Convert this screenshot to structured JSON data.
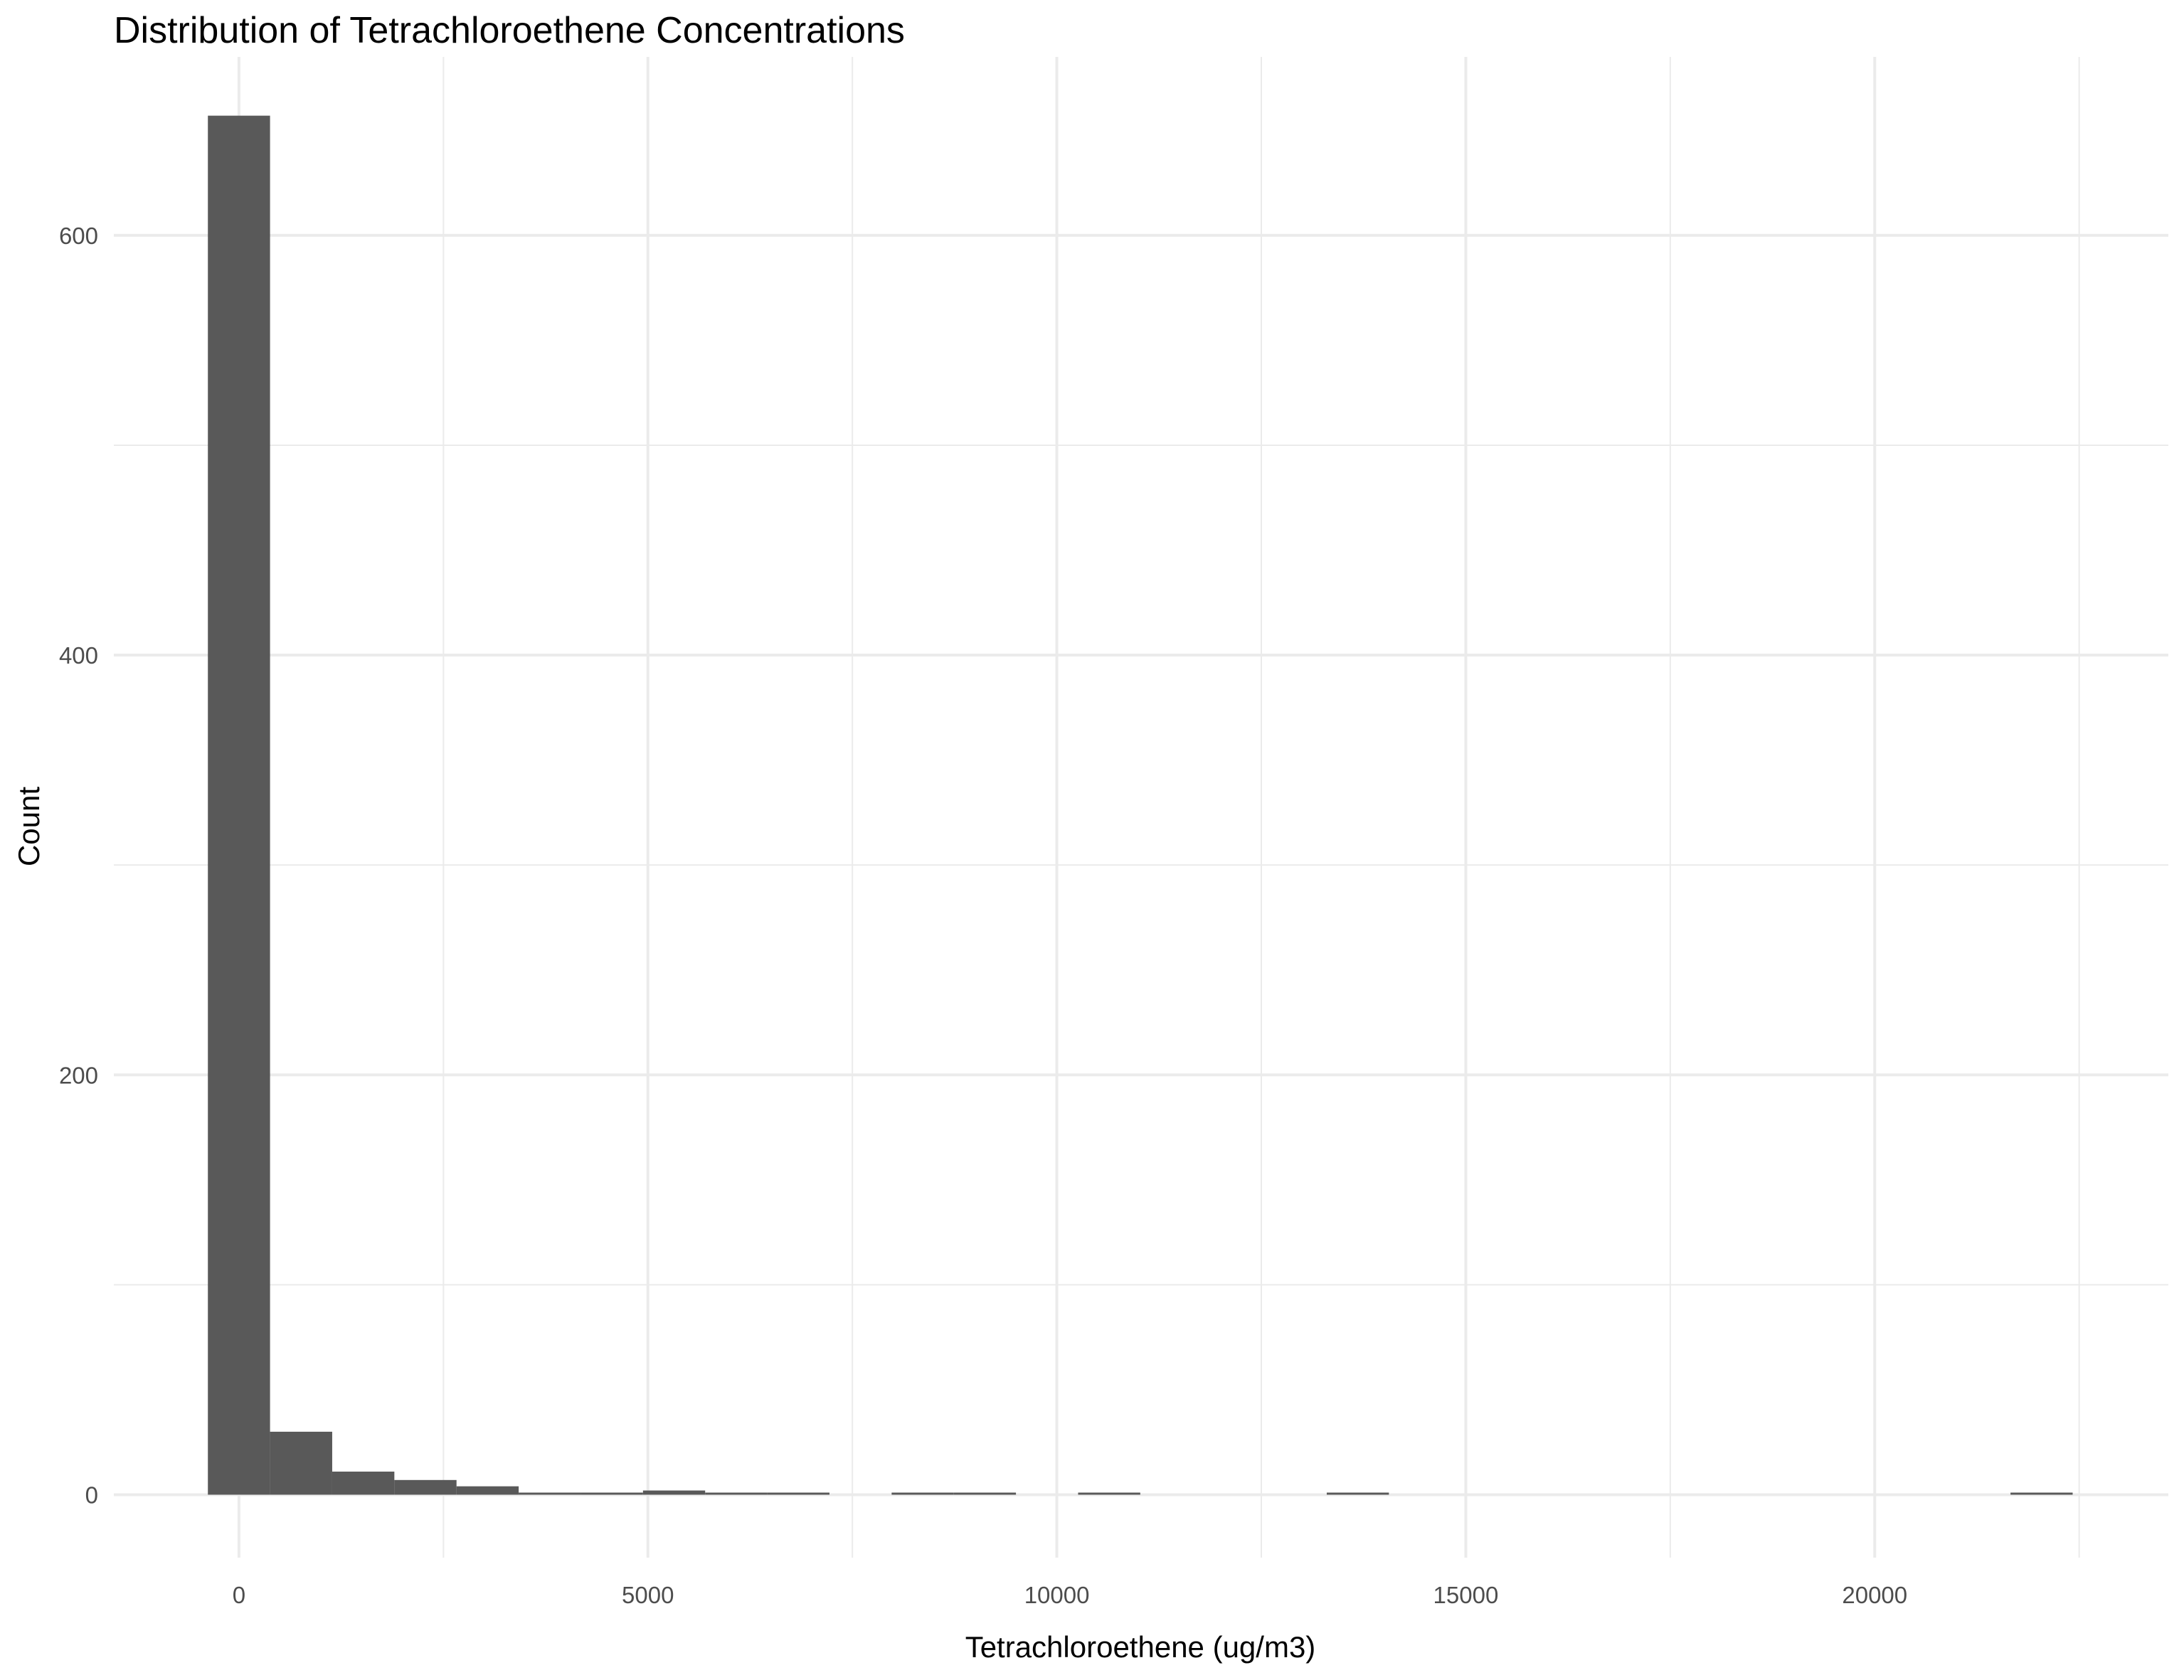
{
  "chart_data": {
    "type": "bar",
    "title": "Distribution of Tetrachloroethene Concentrations",
    "xlabel": "Tetrachloroethene (ug/m3)",
    "ylabel": "Count",
    "xlim": [
      -1530,
      23590
    ],
    "ylim": [
      -30,
      685
    ],
    "x_ticks": [
      0,
      5000,
      10000,
      15000,
      20000
    ],
    "x_tick_labels": [
      "0",
      "5000",
      "10000",
      "15000",
      "20000"
    ],
    "y_ticks": [
      0,
      200,
      400,
      600
    ],
    "y_tick_labels": [
      "0",
      "200",
      "400",
      "600"
    ],
    "bin_width": 760,
    "bins": [
      {
        "x0": -380,
        "x1": 380,
        "count": 657
      },
      {
        "x0": 380,
        "x1": 1140,
        "count": 30
      },
      {
        "x0": 1140,
        "x1": 1900,
        "count": 11
      },
      {
        "x0": 1900,
        "x1": 2660,
        "count": 7
      },
      {
        "x0": 2660,
        "x1": 3420,
        "count": 4
      },
      {
        "x0": 3420,
        "x1": 4180,
        "count": 1
      },
      {
        "x0": 4180,
        "x1": 4940,
        "count": 1
      },
      {
        "x0": 4940,
        "x1": 5700,
        "count": 2
      },
      {
        "x0": 5700,
        "x1": 6460,
        "count": 1
      },
      {
        "x0": 6460,
        "x1": 7220,
        "count": 1
      },
      {
        "x0": 7980,
        "x1": 8740,
        "count": 1
      },
      {
        "x0": 8740,
        "x1": 9500,
        "count": 1
      },
      {
        "x0": 10260,
        "x1": 11020,
        "count": 1
      },
      {
        "x0": 13300,
        "x1": 14060,
        "count": 1
      },
      {
        "x0": 21660,
        "x1": 22420,
        "count": 1
      }
    ],
    "bar_color": "#595959",
    "grid": true,
    "grid_color": "#ebebeb",
    "legend": "none"
  }
}
